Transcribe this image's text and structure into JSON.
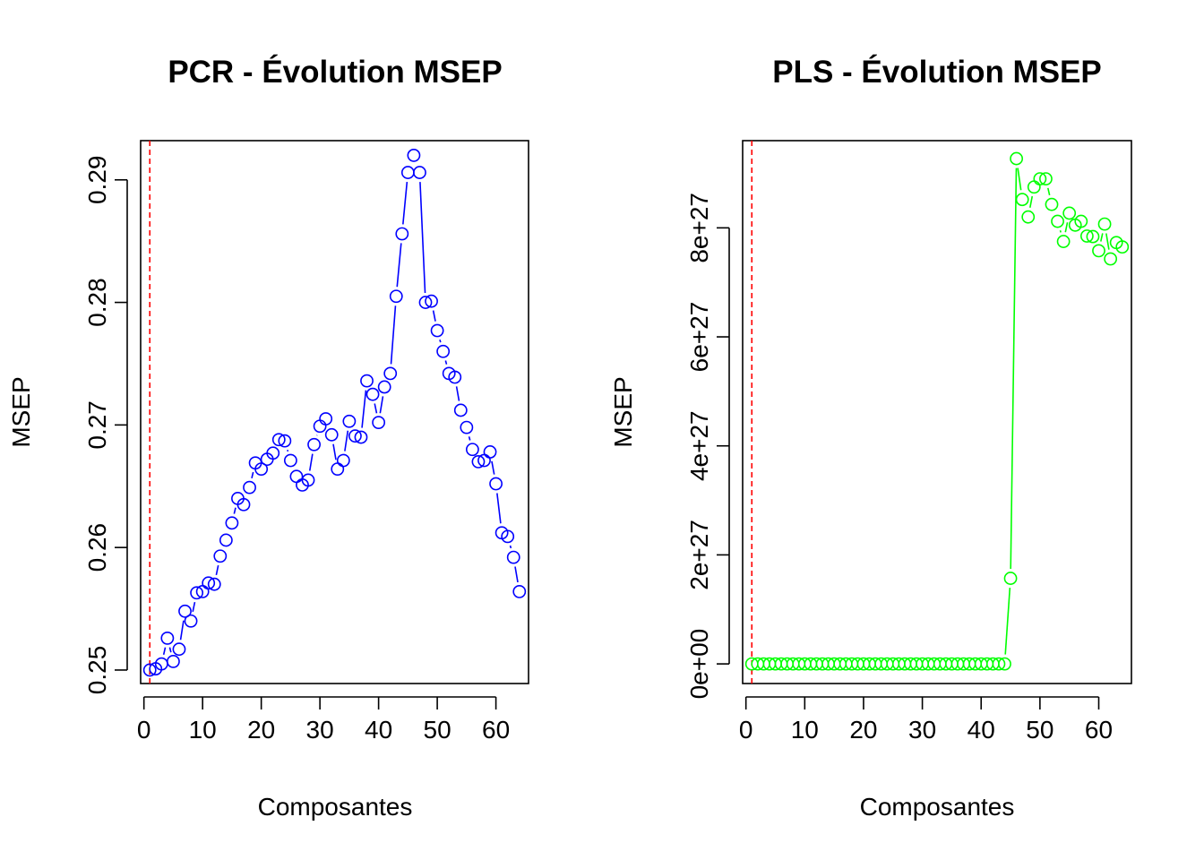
{
  "chart_data": [
    {
      "type": "line",
      "title": "PCR - Évolution MSEP",
      "xlabel": "Composantes",
      "ylabel": "MSEP",
      "xlim": [
        -0.56,
        65.56
      ],
      "ylim": [
        0.2489,
        0.2932
      ],
      "x_ticks": [
        0,
        10,
        20,
        30,
        40,
        50,
        60
      ],
      "x_tick_labels": [
        "0",
        "10",
        "20",
        "30",
        "40",
        "50",
        "60"
      ],
      "y_ticks": [
        0.25,
        0.26,
        0.27,
        0.28,
        0.29
      ],
      "y_tick_labels": [
        "0.25",
        "0.26",
        "0.27",
        "0.28",
        "0.29"
      ],
      "series": [
        {
          "color": "#0000ff",
          "marker": "open-circle",
          "x": [
            1,
            2,
            3,
            4,
            5,
            6,
            7,
            8,
            9,
            10,
            11,
            12,
            13,
            14,
            15,
            16,
            17,
            18,
            19,
            20,
            21,
            22,
            23,
            24,
            25,
            26,
            27,
            28,
            29,
            30,
            31,
            32,
            33,
            34,
            35,
            36,
            37,
            38,
            39,
            40,
            41,
            42,
            43,
            44,
            45,
            46,
            47,
            48,
            49,
            50,
            51,
            52,
            53,
            54,
            55,
            56,
            57,
            58,
            59,
            60,
            61,
            62,
            63,
            64
          ],
          "values": [
            0.25,
            0.2501,
            0.2505,
            0.2526,
            0.2507,
            0.2517,
            0.2548,
            0.254,
            0.2563,
            0.2564,
            0.2571,
            0.257,
            0.2593,
            0.2606,
            0.262,
            0.264,
            0.2635,
            0.2649,
            0.2669,
            0.2664,
            0.2672,
            0.2677,
            0.2688,
            0.2687,
            0.2671,
            0.2658,
            0.2651,
            0.2655,
            0.2684,
            0.2699,
            0.2705,
            0.2692,
            0.2664,
            0.2671,
            0.2703,
            0.2691,
            0.269,
            0.2736,
            0.2725,
            0.2702,
            0.2731,
            0.2742,
            0.2805,
            0.2856,
            0.2906,
            0.292,
            0.2906,
            0.28,
            0.2801,
            0.2777,
            0.276,
            0.2742,
            0.2739,
            0.2712,
            0.2698,
            0.268,
            0.267,
            0.2671,
            0.2678,
            0.2652,
            0.2612,
            0.2609,
            0.2592,
            0.2564
          ]
        }
      ],
      "vline": {
        "x": 1,
        "color": "#ff0000",
        "style": "dashed"
      }
    },
    {
      "type": "line",
      "title": "PLS - Évolution MSEP",
      "xlabel": "Composantes",
      "ylabel": "MSEP",
      "xlim": [
        -0.56,
        65.56
      ],
      "ylim": [
        -3.6e+26,
        9.6e+27
      ],
      "x_ticks": [
        0,
        10,
        20,
        30,
        40,
        50,
        60
      ],
      "x_tick_labels": [
        "0",
        "10",
        "20",
        "30",
        "40",
        "50",
        "60"
      ],
      "y_ticks": [
        0,
        2e+27,
        4e+27,
        6e+27,
        8e+27
      ],
      "y_tick_labels": [
        "0e+00",
        "2e+27",
        "4e+27",
        "6e+27",
        "8e+27"
      ],
      "series": [
        {
          "color": "#00ff00",
          "marker": "open-circle",
          "x": [
            1,
            2,
            3,
            4,
            5,
            6,
            7,
            8,
            9,
            10,
            11,
            12,
            13,
            14,
            15,
            16,
            17,
            18,
            19,
            20,
            21,
            22,
            23,
            24,
            25,
            26,
            27,
            28,
            29,
            30,
            31,
            32,
            33,
            34,
            35,
            36,
            37,
            38,
            39,
            40,
            41,
            42,
            43,
            44,
            45,
            46,
            47,
            48,
            49,
            50,
            51,
            52,
            53,
            54,
            55,
            56,
            57,
            58,
            59,
            60,
            61,
            62,
            63,
            64
          ],
          "values": [
            0,
            0,
            0,
            0,
            0,
            0,
            0,
            0,
            0,
            0,
            0,
            0,
            0,
            0,
            0,
            0,
            0,
            0,
            0,
            0,
            0,
            0,
            0,
            0,
            0,
            0,
            0,
            0,
            0,
            0,
            0,
            0,
            0,
            0,
            0,
            0,
            0,
            0,
            0,
            0,
            0,
            0,
            0,
            0,
            1.57e+27,
            9.27e+27,
            8.52e+27,
            8.2e+27,
            8.75e+27,
            8.9e+27,
            8.9e+27,
            8.43e+27,
            8.12e+27,
            7.75e+27,
            8.27e+27,
            8.05e+27,
            8.12e+27,
            7.85e+27,
            7.84e+27,
            7.58e+27,
            8.07e+27,
            7.43e+27,
            7.73e+27,
            7.65e+27
          ]
        }
      ],
      "vline": {
        "x": 1,
        "color": "#ff0000",
        "style": "dashed"
      }
    }
  ]
}
